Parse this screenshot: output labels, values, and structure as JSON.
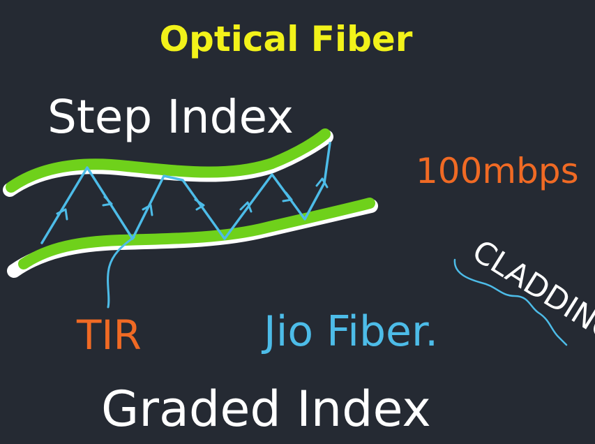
{
  "colors": {
    "background": "#252a33",
    "title": "#f2f21a",
    "chalk_white": "#ffffff",
    "cladding_green": "#6fd11b",
    "ray_blue": "#4dbce8",
    "marker_orange": "#f06a24"
  },
  "board": {
    "title": "Optical Fiber",
    "step_index_label": "Step Index",
    "speed_label": "100mbps",
    "cladding_label": "CLADDING",
    "tir_label": "TIR",
    "jio_label": "Jio Fiber.",
    "graded_index_label": "Graded Index"
  },
  "icons": {
    "fiber": "optical-fiber-sketch-icon",
    "ray": "light-ray-zigzag-icon"
  }
}
